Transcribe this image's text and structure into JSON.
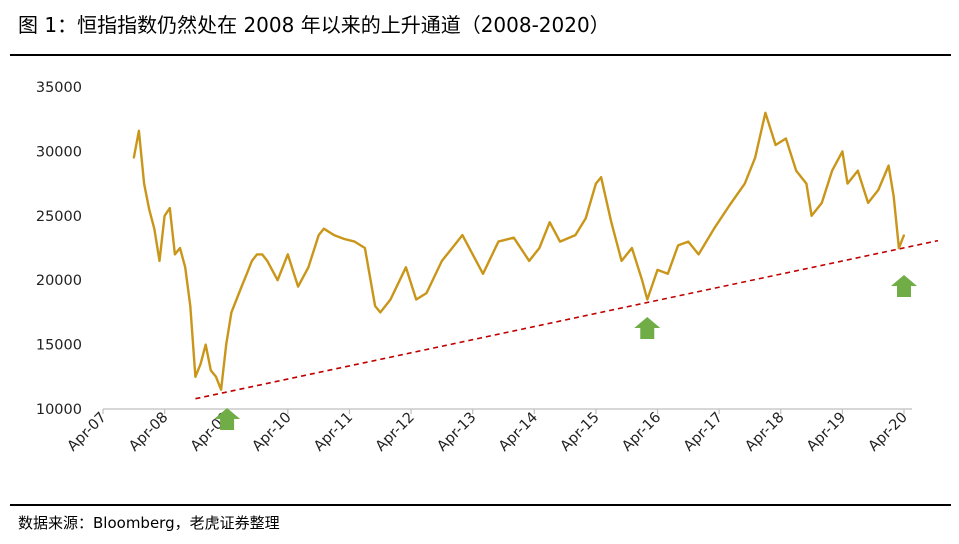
{
  "figure": {
    "title": "图 1：恒指指数仍然处在 2008 年以来的上升通道（2008-2020）",
    "source": "数据来源：Bloomberg，老虎证券整理"
  },
  "colors": {
    "series": "#C9961A",
    "trendline": "#C00000",
    "arrow": "#70AD47",
    "axis": "#BFBFBF",
    "text": "#222222"
  },
  "chart_data": {
    "type": "line",
    "title": "",
    "xlabel": "",
    "ylabel": "",
    "ylim": [
      10000,
      35000
    ],
    "yticks": [
      10000,
      15000,
      20000,
      25000,
      30000,
      35000
    ],
    "xlim": [
      "2007-04",
      "2020-04"
    ],
    "xticks": [
      "Apr-07",
      "Apr-08",
      "Apr-09",
      "Apr-10",
      "Apr-11",
      "Apr-12",
      "Apr-13",
      "Apr-14",
      "Apr-15",
      "Apr-16",
      "Apr-17",
      "Apr-18",
      "Apr-19",
      "Apr-20"
    ],
    "grid": false,
    "legend": "none",
    "series": [
      {
        "x": [
          "2007-10",
          "2007-11",
          "2007-12",
          "2008-01",
          "2008-02",
          "2008-03",
          "2008-04",
          "2008-05",
          "2008-06",
          "2008-07",
          "2008-08",
          "2008-09",
          "2008-10",
          "2008-11",
          "2008-12",
          "2009-01",
          "2009-02",
          "2009-03",
          "2009-04",
          "2009-05",
          "2009-06",
          "2009-07",
          "2009-08",
          "2009-09",
          "2009-10",
          "2009-11",
          "2009-12",
          "2010-02",
          "2010-04",
          "2010-06",
          "2010-08",
          "2010-10",
          "2010-11",
          "2011-01",
          "2011-03",
          "2011-05",
          "2011-07",
          "2011-09",
          "2011-10",
          "2011-12",
          "2012-03",
          "2012-05",
          "2012-07",
          "2012-10",
          "2012-12",
          "2013-02",
          "2013-04",
          "2013-06",
          "2013-09",
          "2013-12",
          "2014-03",
          "2014-05",
          "2014-07",
          "2014-09",
          "2014-12",
          "2015-02",
          "2015-04",
          "2015-05",
          "2015-07",
          "2015-09",
          "2015-11",
          "2016-01",
          "2016-02",
          "2016-04",
          "2016-06",
          "2016-08",
          "2016-10",
          "2016-12",
          "2017-03",
          "2017-06",
          "2017-09",
          "2017-11",
          "2018-01",
          "2018-03",
          "2018-05",
          "2018-07",
          "2018-09",
          "2018-10",
          "2018-12",
          "2019-02",
          "2019-04",
          "2019-05",
          "2019-07",
          "2019-09",
          "2019-11",
          "2020-01",
          "2020-02",
          "2020-03",
          "2020-04"
        ],
        "y": [
          29500,
          31600,
          27500,
          25500,
          24000,
          21500,
          25000,
          25600,
          22000,
          22500,
          21000,
          18000,
          12500,
          13500,
          15000,
          13000,
          12500,
          11500,
          15000,
          17500,
          18500,
          19500,
          20500,
          21500,
          22000,
          22000,
          21500,
          20000,
          22000,
          19500,
          21000,
          23500,
          24000,
          23500,
          23200,
          23000,
          22500,
          18000,
          17500,
          18500,
          21000,
          18500,
          19000,
          21500,
          22500,
          23500,
          22000,
          20500,
          23000,
          23300,
          21500,
          22500,
          24500,
          23000,
          23500,
          24800,
          27500,
          28000,
          24500,
          21500,
          22500,
          20000,
          18500,
          20800,
          20500,
          22700,
          23000,
          22000,
          24000,
          25800,
          27500,
          29500,
          33000,
          30500,
          31000,
          28500,
          27500,
          25000,
          26000,
          28500,
          30000,
          27500,
          28500,
          26000,
          27000,
          28900,
          26500,
          22500,
          23500
        ]
      }
    ],
    "trendline": {
      "x": [
        "2008-10",
        "2020-04"
      ],
      "y": [
        10800,
        22600
      ],
      "style": "dashed"
    },
    "markers": [
      {
        "type": "up-arrow",
        "x": "2009-03"
      },
      {
        "type": "up-arrow",
        "x": "2016-02"
      },
      {
        "type": "up-arrow",
        "x": "2020-04"
      }
    ]
  }
}
